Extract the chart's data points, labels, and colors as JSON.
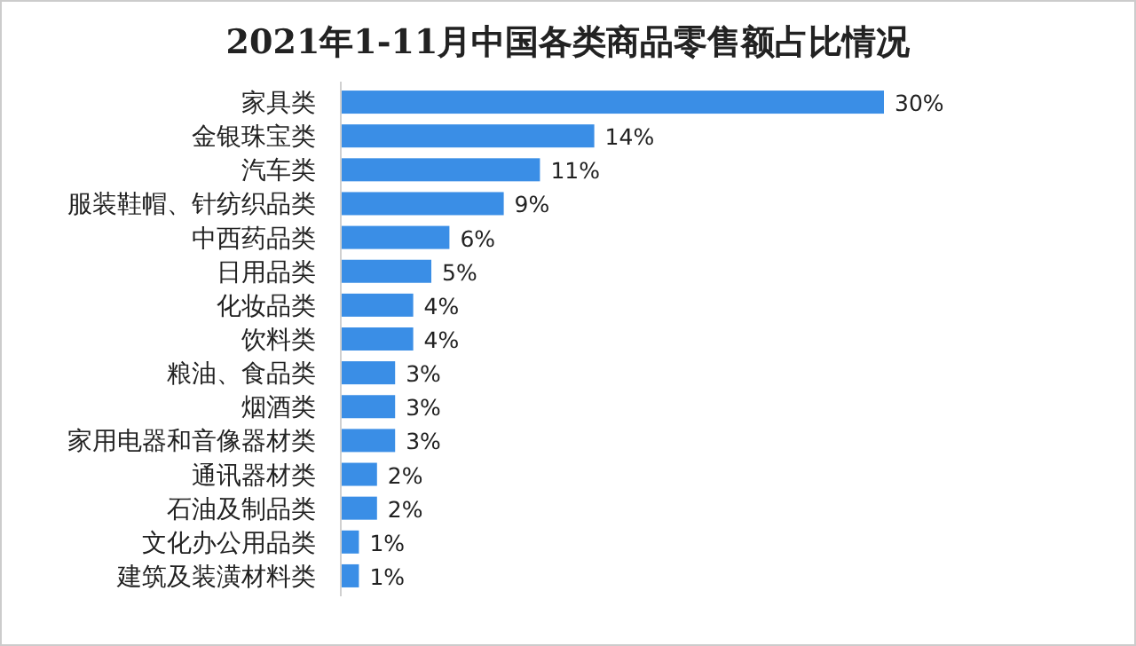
{
  "chart_data": {
    "type": "bar",
    "orientation": "horizontal",
    "title": "2021年1-11月中国各类商品零售额占比情况",
    "categories": [
      "家具类",
      "金银珠宝类",
      "汽车类",
      "服装鞋帽、针纺织品类",
      "中西药品类",
      "日用品类",
      "化妆品类",
      "饮料类",
      "粮油、食品类",
      "烟酒类",
      "家用电器和音像器材类",
      "通讯器材类",
      "石油及制品类",
      "文化办公用品类",
      "建筑及装潢材料类"
    ],
    "values": [
      30,
      14,
      11,
      9,
      6,
      5,
      4,
      4,
      3,
      3,
      3,
      2,
      2,
      1,
      1
    ],
    "value_labels": [
      "30%",
      "14%",
      "11%",
      "9%",
      "6%",
      "5%",
      "4%",
      "4%",
      "3%",
      "3%",
      "3%",
      "2%",
      "2%",
      "1%",
      "1%"
    ],
    "color": "#3a8ee6"
  }
}
